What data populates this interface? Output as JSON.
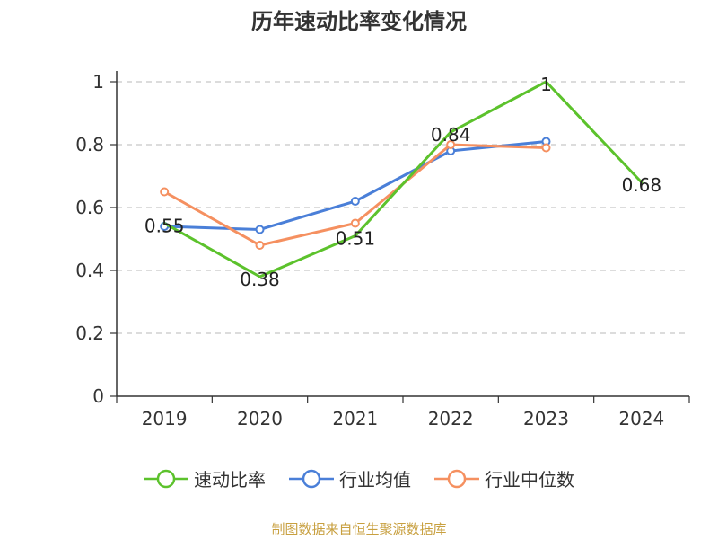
{
  "chart_data": {
    "type": "line",
    "title": "历年速动比率变化情况",
    "categories": [
      "2019",
      "2020",
      "2021",
      "2022",
      "2023",
      "2024"
    ],
    "yticks": [
      "0",
      "0.2",
      "0.4",
      "0.6",
      "0.8",
      "1"
    ],
    "ylim": [
      0,
      1
    ],
    "grid": true,
    "legend_position": "bottom",
    "series": [
      {
        "name": "速动比率",
        "color": "#5cc22c",
        "values": [
          0.55,
          0.38,
          0.51,
          0.84,
          1,
          0.68
        ],
        "labels": [
          "0.55",
          "0.38",
          "0.51",
          "0.84",
          "1",
          "0.68"
        ],
        "show_markers": false
      },
      {
        "name": "行业均值",
        "color": "#4a7fd8",
        "values": [
          0.54,
          0.53,
          0.62,
          0.78,
          0.81,
          null
        ],
        "labels": null,
        "show_markers": true
      },
      {
        "name": "行业中位数",
        "color": "#f59060",
        "values": [
          0.65,
          0.48,
          0.55,
          0.8,
          0.79,
          null
        ],
        "labels": null,
        "show_markers": true
      }
    ]
  },
  "source_text": "制图数据来自恒生聚源数据库"
}
